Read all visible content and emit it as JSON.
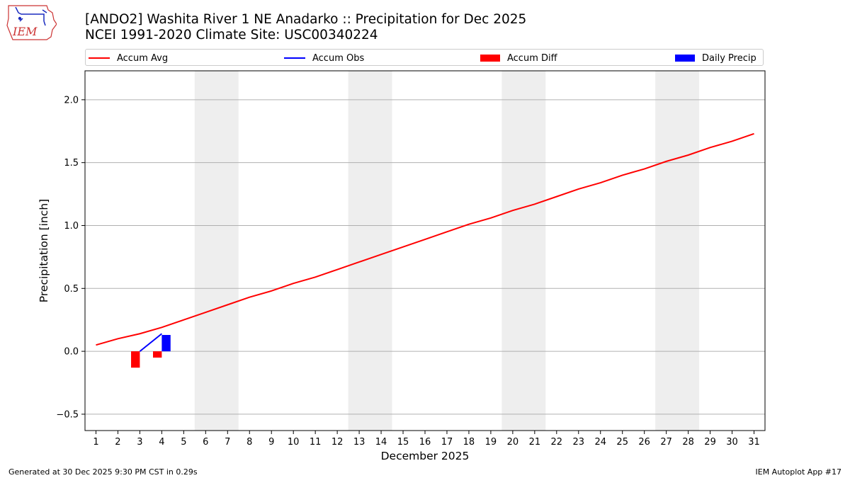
{
  "header": {
    "title": "[ANDO2] Washita River 1 NE Anadarko :: Precipitation for Dec 2025",
    "subtitle": "NCEI 1991-2020 Climate Site: USC00340224",
    "logo_text": "IEM"
  },
  "footer": {
    "left": "Generated at 30 Dec 2025 9:30 PM CST in 0.29s",
    "right": "IEM Autoplot App #17"
  },
  "colors": {
    "accum_avg": "#ff0000",
    "accum_obs": "#0000ff",
    "accum_diff": "#ff0000",
    "daily_precip": "#0000ff",
    "weekend_shade": "#eeeeee",
    "grid": "#b0b0b0"
  },
  "chart_data": {
    "type": "line",
    "xlabel": "December 2025",
    "ylabel": "Precipitation [inch]",
    "xlim": [
      0.5,
      31.5
    ],
    "ylim": [
      -0.63,
      2.23
    ],
    "yticks": [
      -0.5,
      0.0,
      0.5,
      1.0,
      1.5,
      2.0
    ],
    "ytick_labels": [
      "−0.5",
      "0.0",
      "0.5",
      "1.0",
      "1.5",
      "2.0"
    ],
    "x": [
      1,
      2,
      3,
      4,
      5,
      6,
      7,
      8,
      9,
      10,
      11,
      12,
      13,
      14,
      15,
      16,
      17,
      18,
      19,
      20,
      21,
      22,
      23,
      24,
      25,
      26,
      27,
      28,
      29,
      30,
      31
    ],
    "grid": "y",
    "legend_position": "top",
    "legend": [
      "Accum Avg",
      "Accum Obs",
      "Accum Diff",
      "Daily Precip"
    ],
    "shaded_days": [
      [
        6,
        7
      ],
      [
        13,
        14
      ],
      [
        20,
        21
      ],
      [
        27,
        28
      ]
    ],
    "series": [
      {
        "name": "Accum Avg",
        "type": "line",
        "x": [
          1,
          2,
          3,
          4,
          5,
          6,
          7,
          8,
          9,
          10,
          11,
          12,
          13,
          14,
          15,
          16,
          17,
          18,
          19,
          20,
          21,
          22,
          23,
          24,
          25,
          26,
          27,
          28,
          29,
          30,
          31
        ],
        "values": [
          0.05,
          0.1,
          0.14,
          0.19,
          0.25,
          0.31,
          0.37,
          0.43,
          0.48,
          0.54,
          0.59,
          0.65,
          0.71,
          0.77,
          0.83,
          0.89,
          0.95,
          1.01,
          1.06,
          1.12,
          1.17,
          1.23,
          1.29,
          1.34,
          1.4,
          1.45,
          1.51,
          1.56,
          1.62,
          1.67,
          1.73
        ]
      },
      {
        "name": "Accum Obs",
        "type": "line",
        "x": [
          3,
          4
        ],
        "values": [
          0.0,
          0.14
        ]
      },
      {
        "name": "Accum Diff",
        "type": "bar",
        "x": [
          3,
          4
        ],
        "values": [
          -0.13,
          -0.05
        ]
      },
      {
        "name": "Daily Precip",
        "type": "bar",
        "x": [
          4
        ],
        "values": [
          0.13
        ]
      }
    ]
  }
}
